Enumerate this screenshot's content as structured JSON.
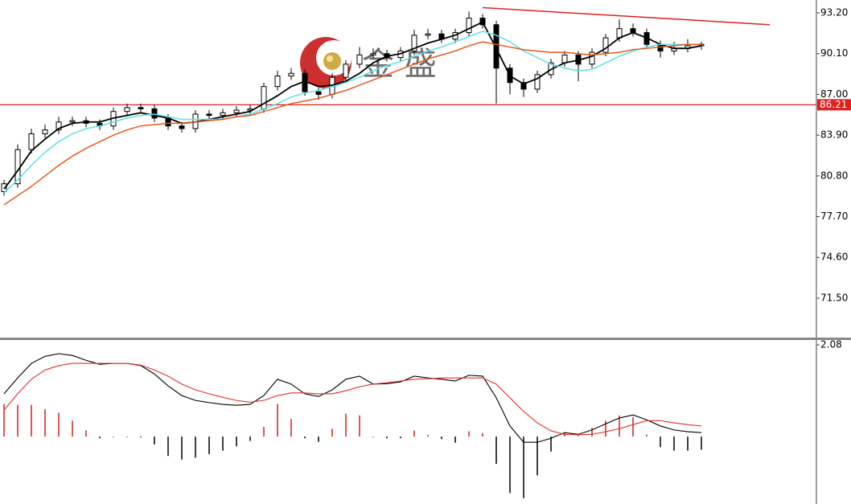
{
  "chart_data": [
    {
      "type": "candlestick",
      "watermark": "金 盛",
      "open": [
        79.6,
        80.2,
        82.8,
        84.0,
        84.3,
        84.9,
        85.0,
        84.8,
        84.6,
        85.7,
        86.0,
        85.9,
        85.2,
        84.6,
        84.4,
        85.5,
        85.4,
        85.6,
        85.8,
        85.9,
        87.6,
        88.4,
        88.6,
        87.2,
        87.0,
        88.3,
        89.3,
        90.0,
        90.1,
        89.8,
        90.3,
        91.5,
        91.6,
        91.2,
        91.7,
        92.8,
        92.3,
        89.0,
        87.9,
        87.4,
        88.5,
        89.4,
        90.0,
        89.3,
        90.2,
        91.3,
        92.0,
        91.7,
        90.8,
        90.3,
        90.5,
        90.7
      ],
      "high": [
        80.5,
        83.2,
        84.4,
        84.7,
        85.3,
        85.3,
        85.3,
        85.1,
        86.0,
        86.3,
        86.3,
        86.2,
        85.5,
        84.9,
        85.8,
        85.8,
        85.9,
        86.1,
        86.2,
        87.9,
        88.8,
        89.0,
        88.9,
        87.5,
        88.6,
        89.6,
        90.6,
        90.5,
        90.4,
        90.6,
        91.9,
        92.0,
        91.9,
        92.0,
        93.3,
        93.1,
        92.6,
        89.3,
        88.2,
        88.8,
        89.7,
        90.3,
        90.3,
        90.5,
        91.6,
        92.7,
        92.4,
        92.0,
        91.1,
        91.0,
        91.2,
        91.0
      ],
      "low": [
        79.3,
        79.9,
        82.5,
        83.7,
        84.0,
        84.6,
        84.5,
        84.3,
        84.3,
        85.4,
        85.6,
        84.9,
        84.3,
        84.1,
        84.1,
        85.1,
        85.1,
        85.3,
        85.5,
        85.6,
        87.3,
        88.1,
        86.9,
        86.6,
        86.7,
        88.0,
        89.0,
        89.7,
        89.5,
        89.5,
        90.0,
        91.2,
        90.9,
        90.9,
        91.4,
        92.0,
        86.3,
        87.0,
        86.8,
        87.1,
        88.2,
        89.1,
        88.0,
        89.0,
        89.9,
        91.0,
        91.4,
        90.5,
        89.8,
        90.0,
        90.2,
        90.4
      ],
      "close": [
        80.2,
        82.8,
        84.0,
        84.3,
        84.9,
        85.0,
        84.8,
        84.6,
        85.7,
        86.0,
        85.9,
        85.2,
        84.6,
        84.4,
        85.5,
        85.4,
        85.6,
        85.8,
        85.9,
        87.6,
        88.4,
        88.6,
        87.2,
        87.0,
        88.3,
        89.3,
        90.0,
        90.1,
        89.8,
        90.3,
        91.5,
        91.6,
        91.2,
        91.7,
        92.8,
        92.3,
        89.0,
        87.9,
        87.4,
        88.5,
        89.4,
        90.0,
        89.3,
        90.2,
        91.3,
        92.0,
        91.7,
        90.8,
        90.3,
        90.5,
        90.7,
        90.8
      ],
      "series": [
        {
          "color": "#000000",
          "values": [
            79.8,
            81.2,
            82.7,
            83.6,
            84.4,
            84.8,
            84.9,
            84.9,
            85.2,
            85.4,
            85.6,
            85.4,
            85.2,
            84.8,
            84.9,
            85.1,
            85.3,
            85.5,
            85.7,
            86.3,
            86.9,
            87.6,
            88.0,
            87.6,
            87.7,
            88.0,
            88.6,
            89.4,
            89.9,
            90.1,
            90.5,
            90.9,
            91.2,
            91.5,
            92.0,
            92.5,
            90.5,
            88.4,
            87.8,
            88.2,
            88.9,
            89.4,
            89.6,
            89.9,
            90.5,
            91.3,
            91.7,
            91.3,
            90.8,
            90.5,
            90.5,
            90.7
          ]
        },
        {
          "color": "#5ee0e8",
          "values": [
            79.5,
            80.5,
            81.6,
            82.6,
            83.4,
            84.0,
            84.4,
            84.6,
            84.9,
            85.2,
            85.4,
            85.5,
            85.3,
            85.1,
            85.1,
            85.1,
            85.1,
            85.3,
            85.5,
            85.9,
            86.3,
            86.8,
            87.1,
            87.3,
            87.6,
            87.9,
            88.3,
            88.8,
            89.2,
            89.5,
            89.9,
            90.3,
            90.6,
            91.0,
            91.4,
            91.8,
            91.5,
            91.0,
            90.3,
            89.8,
            89.3,
            89.0,
            88.8,
            88.9,
            89.4,
            89.9,
            90.3,
            90.6,
            90.8,
            90.8,
            90.8,
            90.8
          ]
        },
        {
          "color": "#e8581a",
          "values": [
            78.6,
            79.3,
            80.0,
            80.8,
            81.6,
            82.3,
            82.9,
            83.4,
            83.9,
            84.3,
            84.6,
            84.7,
            84.8,
            84.8,
            84.9,
            85.0,
            85.1,
            85.3,
            85.4,
            85.7,
            86.0,
            86.3,
            86.5,
            86.7,
            87.0,
            87.3,
            87.7,
            88.1,
            88.5,
            88.9,
            89.3,
            89.7,
            90.0,
            90.3,
            90.7,
            91.0,
            90.8,
            90.6,
            90.4,
            90.3,
            90.2,
            90.2,
            90.1,
            90.0,
            90.1,
            90.2,
            90.4,
            90.5,
            90.6,
            90.7,
            90.8,
            90.8
          ]
        }
      ],
      "trendline": {
        "x": [
          35,
          56
        ],
        "y": [
          93.6,
          92.3
        ],
        "color": "#e02020"
      },
      "hline": {
        "value": 86.21,
        "color": "#e02020"
      },
      "ylim": [
        68.5,
        94.18
      ],
      "yticks": [
        {
          "value": 93.2,
          "label": "93.20"
        },
        {
          "value": 90.1,
          "label": "90.10"
        },
        {
          "value": 87.0,
          "label": "87.00"
        },
        {
          "value": 83.9,
          "label": "83.90"
        },
        {
          "value": 80.8,
          "label": "80.80"
        },
        {
          "value": 77.7,
          "label": "77.70"
        },
        {
          "value": 74.6,
          "label": "74.60"
        },
        {
          "value": 71.5,
          "label": "71.50"
        }
      ]
    },
    {
      "type": "macd",
      "histogram": [
        0.74,
        0.72,
        0.72,
        0.62,
        0.54,
        0.36,
        0.14,
        -0.04,
        0,
        0,
        -0.02,
        -0.18,
        -0.44,
        -0.52,
        -0.48,
        -0.4,
        -0.32,
        -0.22,
        -0.1,
        0.22,
        0.74,
        0.4,
        -0.04,
        -0.12,
        0.18,
        0.52,
        0.48,
        0,
        -0.04,
        -0.04,
        0.14,
        0.04,
        -0.06,
        -0.14,
        0.12,
        0.08,
        -0.62,
        -1.28,
        -1.4,
        -0.88,
        -0.34,
        0.08,
        0.02,
        0.2,
        0.36,
        0.48,
        0.44,
        0.04,
        -0.24,
        -0.32,
        -0.32,
        -0.3
      ],
      "histogram_colors": [
        "#d02020",
        "#000000"
      ],
      "series": [
        {
          "color": "#000000",
          "values": [
            0.97,
            1.33,
            1.66,
            1.82,
            1.88,
            1.84,
            1.73,
            1.64,
            1.66,
            1.66,
            1.61,
            1.42,
            1.15,
            0.93,
            0.82,
            0.77,
            0.73,
            0.71,
            0.73,
            0.93,
            1.3,
            1.19,
            0.97,
            0.91,
            1.06,
            1.3,
            1.37,
            1.19,
            1.2,
            1.24,
            1.37,
            1.33,
            1.3,
            1.26,
            1.39,
            1.37,
            0.88,
            0.24,
            -0.13,
            -0.13,
            -0.04,
            0.09,
            0.05,
            0.15,
            0.29,
            0.42,
            0.49,
            0.38,
            0.24,
            0.15,
            0.11,
            0.09
          ]
        },
        {
          "color": "#e03030",
          "values": [
            0.6,
            0.97,
            1.3,
            1.51,
            1.61,
            1.66,
            1.66,
            1.66,
            1.66,
            1.66,
            1.62,
            1.51,
            1.37,
            1.19,
            1.06,
            0.97,
            0.89,
            0.82,
            0.78,
            0.82,
            0.93,
            0.99,
            0.99,
            0.97,
            0.97,
            1.04,
            1.13,
            1.19,
            1.22,
            1.26,
            1.3,
            1.31,
            1.33,
            1.33,
            1.33,
            1.33,
            1.19,
            0.88,
            0.57,
            0.31,
            0.13,
            0.05,
            0.04,
            0.05,
            0.11,
            0.18,
            0.27,
            0.36,
            0.36,
            0.31,
            0.27,
            0.24
          ]
        }
      ],
      "ylim": [
        -1.53,
        2.19
      ],
      "yticks": [
        {
          "value": 2.08,
          "label": "2.08"
        }
      ]
    }
  ]
}
